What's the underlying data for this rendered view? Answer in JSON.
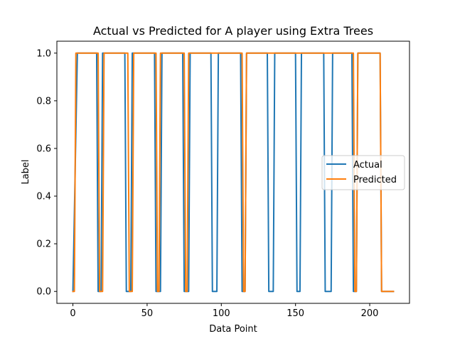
{
  "chart_data": {
    "type": "line",
    "title": "Actual vs Predicted for A player using Extra Trees",
    "xlabel": "Data Point",
    "ylabel": "Label",
    "xlim": [
      -10.8,
      226.8
    ],
    "ylim": [
      -0.05,
      1.05
    ],
    "xticks": [
      0,
      50,
      100,
      150,
      200
    ],
    "yticks": [
      0.0,
      0.2,
      0.4,
      0.6,
      0.8,
      1.0
    ],
    "xtick_labels": [
      "0",
      "50",
      "100",
      "150",
      "200"
    ],
    "ytick_labels": [
      "0.0",
      "0.2",
      "0.4",
      "0.6",
      "0.8",
      "1.0"
    ],
    "grid": false,
    "legend_position": "center-right",
    "series": [
      {
        "name": "Actual",
        "color": "#1f77b4",
        "segments": [
          [
            0,
            0
          ],
          [
            3,
            1
          ],
          [
            16,
            1
          ],
          [
            17,
            0
          ],
          [
            19,
            0
          ],
          [
            20,
            1
          ],
          [
            35,
            1
          ],
          [
            36,
            0
          ],
          [
            39,
            0
          ],
          [
            40,
            1
          ],
          [
            55,
            1
          ],
          [
            56,
            0
          ],
          [
            59,
            0
          ],
          [
            60,
            1
          ],
          [
            74,
            1
          ],
          [
            75,
            0
          ],
          [
            78,
            0
          ],
          [
            79,
            1
          ],
          [
            93,
            1
          ],
          [
            94,
            0
          ],
          [
            97,
            0
          ],
          [
            98,
            1
          ],
          [
            113,
            1
          ],
          [
            114,
            0
          ],
          [
            116,
            0
          ],
          [
            117,
            1
          ],
          [
            131,
            1
          ],
          [
            132,
            0
          ],
          [
            135,
            0
          ],
          [
            136,
            1
          ],
          [
            150,
            1
          ],
          [
            151,
            0
          ],
          [
            153,
            0
          ],
          [
            154,
            1
          ],
          [
            169,
            1
          ],
          [
            170,
            0
          ],
          [
            174,
            0
          ],
          [
            175,
            1
          ],
          [
            188,
            1
          ],
          [
            189,
            0
          ],
          [
            191,
            0
          ],
          [
            192,
            1
          ],
          [
            207,
            1
          ],
          [
            208,
            0
          ],
          [
            216,
            0
          ]
        ]
      },
      {
        "name": "Predicted",
        "color": "#ff7f0e",
        "segments": [
          [
            0,
            0
          ],
          [
            1,
            0
          ],
          [
            2,
            1
          ],
          [
            17,
            1
          ],
          [
            18,
            0
          ],
          [
            20,
            0
          ],
          [
            21,
            1
          ],
          [
            37,
            1
          ],
          [
            38,
            0
          ],
          [
            40,
            0
          ],
          [
            41,
            1
          ],
          [
            56,
            1
          ],
          [
            57,
            0
          ],
          [
            58,
            0
          ],
          [
            59,
            1
          ],
          [
            75,
            1
          ],
          [
            76,
            0
          ],
          [
            77,
            0
          ],
          [
            78,
            1
          ],
          [
            114,
            1
          ],
          [
            115,
            0
          ],
          [
            116,
            0
          ],
          [
            117,
            1
          ],
          [
            189,
            1
          ],
          [
            190,
            0
          ],
          [
            191,
            0
          ],
          [
            192,
            1
          ],
          [
            207,
            1
          ],
          [
            208,
            0
          ],
          [
            216,
            0
          ]
        ]
      }
    ]
  }
}
